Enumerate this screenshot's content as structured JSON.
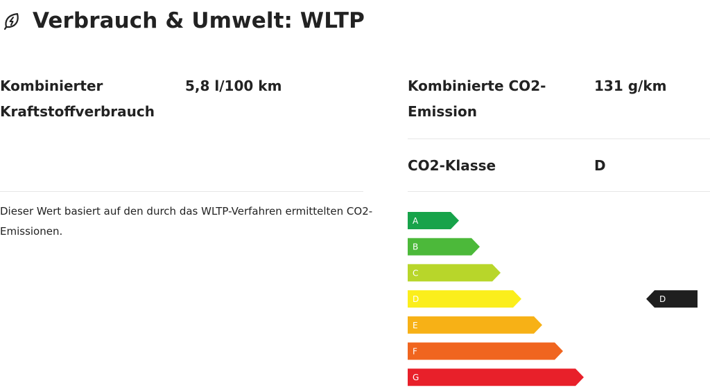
{
  "header": {
    "title": "Verbrauch & Umwelt: WLTP",
    "icon": "leaf-bolt-icon"
  },
  "consumption": {
    "combined_fuel": {
      "label_line1": "Kombinierter",
      "label_line2": "Kraftstoffverbrauch",
      "value": "5,8 l/100 km"
    },
    "combined_co2": {
      "label_line1": "Kombinierte CO2-",
      "label_line2": "Emission",
      "value": "131 g/km"
    },
    "co2_class": {
      "label": "CO2-Klasse",
      "value": "D"
    }
  },
  "note": "Dieser Wert basiert auf den durch das WLTP-Verfahren ermittelten CO2-Emissionen.",
  "energy_label": {
    "classes": [
      {
        "letter": "A",
        "color": "#17a34a"
      },
      {
        "letter": "B",
        "color": "#4cb93a"
      },
      {
        "letter": "C",
        "color": "#b8d62a"
      },
      {
        "letter": "D",
        "color": "#fbee1c"
      },
      {
        "letter": "E",
        "color": "#f7b116"
      },
      {
        "letter": "F",
        "color": "#f0651f"
      },
      {
        "letter": "G",
        "color": "#e8202a"
      }
    ],
    "current": "D",
    "marker_color": "#1f1f1f"
  }
}
